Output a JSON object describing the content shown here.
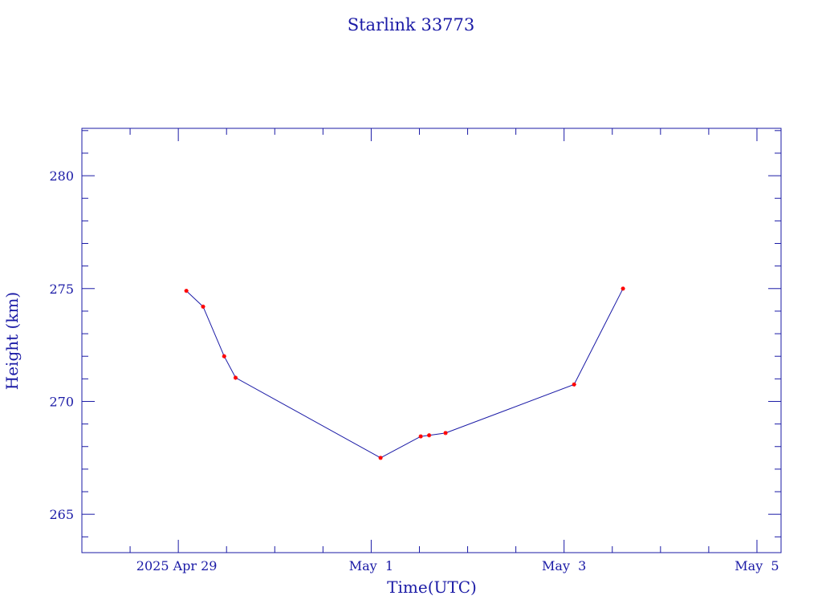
{
  "chart_data": {
    "type": "line",
    "title": "Starlink 33773",
    "xlabel": "Time(UTC)",
    "ylabel": "Height (km)",
    "x_tick_labels": [
      "2025 Apr 29",
      "May  1",
      "May  3",
      "May  5"
    ],
    "y_tick_labels": [
      "265",
      "270",
      "275",
      "280"
    ],
    "xlim": [
      "2025-04-28T00:00",
      "2025-05-05T06:00"
    ],
    "ylim": [
      263.3,
      282.1
    ],
    "grid": false,
    "legend": "none",
    "colors": {
      "axes": "#1a1aa6",
      "line": "#1a1aa6",
      "markers": "#ff0000"
    },
    "marker": "asterisk",
    "series": [
      {
        "x": [
          "2025-04-29T02:00",
          "2025-04-29T06:10",
          "2025-04-29T11:25",
          "2025-04-29T14:15",
          "2025-05-01T02:20",
          "2025-05-01T12:20",
          "2025-05-01T14:25",
          "2025-05-01T18:30",
          "2025-05-03T02:30",
          "2025-05-03T14:40"
        ],
        "values": [
          274.9,
          274.2,
          272.0,
          271.05,
          267.5,
          268.45,
          268.5,
          268.6,
          270.75,
          275.0
        ]
      }
    ]
  }
}
